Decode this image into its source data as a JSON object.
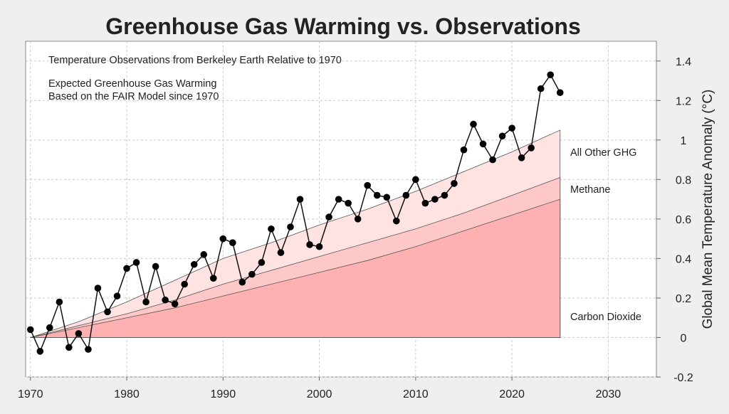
{
  "chart_data": {
    "type": "area",
    "title": "Greenhouse Gas Warming vs. Observations",
    "xlabel": "",
    "ylabel": "Global Mean Temperature Anomaly (°C)",
    "xlim": [
      1969.5,
      2035
    ],
    "ylim": [
      -0.2,
      1.5
    ],
    "grid": true,
    "y_axis_side": "right",
    "xticks": [
      1970,
      1980,
      1990,
      2000,
      2010,
      2020,
      2030
    ],
    "yticks": [
      -0.2,
      0,
      0.2,
      0.4,
      0.6,
      0.8,
      1,
      1.2,
      1.4
    ],
    "ytick_labels": [
      "-0.2",
      "0",
      "0.2",
      "0.4",
      "0.6",
      "0.8",
      "1",
      "1.2",
      "1.4"
    ],
    "annotations": [
      "Temperature Observations from Berkeley Earth Relative to 1970",
      "Expected Greenhouse Gas Warming",
      "Based on the FAIR Model since 1970"
    ],
    "stack_years": [
      1970,
      1975,
      1980,
      1985,
      1990,
      1995,
      2000,
      2005,
      2010,
      2015,
      2020,
      2025
    ],
    "stack": [
      {
        "name": "Carbon Dioxide",
        "color": "#ffb0b0",
        "cumulative": [
          0,
          0.05,
          0.1,
          0.15,
          0.21,
          0.27,
          0.33,
          0.39,
          0.46,
          0.54,
          0.62,
          0.7
        ]
      },
      {
        "name": "Methane",
        "color": "#ffc8c8",
        "cumulative": [
          0,
          0.06,
          0.12,
          0.19,
          0.27,
          0.34,
          0.41,
          0.48,
          0.55,
          0.63,
          0.72,
          0.81
        ]
      },
      {
        "name": "All Other GHG",
        "color": "#ffe2e2",
        "cumulative": [
          0,
          0.08,
          0.18,
          0.29,
          0.4,
          0.48,
          0.57,
          0.65,
          0.74,
          0.84,
          0.94,
          1.05
        ]
      }
    ],
    "observations": {
      "x": [
        1970,
        1971,
        1972,
        1973,
        1974,
        1975,
        1976,
        1977,
        1978,
        1979,
        1980,
        1981,
        1982,
        1983,
        1984,
        1985,
        1986,
        1987,
        1988,
        1989,
        1990,
        1991,
        1992,
        1993,
        1994,
        1995,
        1996,
        1997,
        1998,
        1999,
        2000,
        2001,
        2002,
        2003,
        2004,
        2005,
        2006,
        2007,
        2008,
        2009,
        2010,
        2011,
        2012,
        2013,
        2014,
        2015,
        2016,
        2017,
        2018,
        2019,
        2020,
        2021,
        2022,
        2023,
        2024,
        2025
      ],
      "y": [
        0.04,
        -0.07,
        0.05,
        0.18,
        -0.05,
        0.02,
        -0.06,
        0.25,
        0.13,
        0.21,
        0.35,
        0.38,
        0.18,
        0.36,
        0.19,
        0.17,
        0.27,
        0.37,
        0.42,
        0.3,
        0.5,
        0.48,
        0.28,
        0.32,
        0.38,
        0.55,
        0.43,
        0.56,
        0.7,
        0.47,
        0.46,
        0.61,
        0.7,
        0.68,
        0.6,
        0.77,
        0.72,
        0.71,
        0.59,
        0.72,
        0.8,
        0.68,
        0.7,
        0.72,
        0.78,
        0.95,
        1.08,
        0.98,
        0.9,
        1.02,
        1.06,
        0.91,
        0.96,
        1.26,
        1.33,
        1.24
      ]
    }
  }
}
